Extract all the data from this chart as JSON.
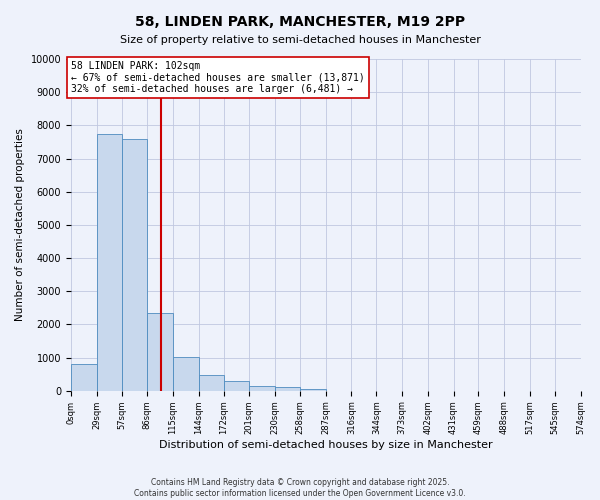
{
  "title": "58, LINDEN PARK, MANCHESTER, M19 2PP",
  "subtitle": "Size of property relative to semi-detached houses in Manchester",
  "xlabel": "Distribution of semi-detached houses by size in Manchester",
  "ylabel": "Number of semi-detached properties",
  "bin_edges": [
    0,
    29,
    57,
    86,
    115,
    144,
    172,
    201,
    230,
    258,
    287,
    316,
    344,
    373,
    402,
    431,
    459,
    488,
    517,
    545,
    574
  ],
  "bin_counts": [
    800,
    7750,
    7600,
    2350,
    1020,
    460,
    290,
    140,
    100,
    50,
    0,
    0,
    0,
    0,
    0,
    0,
    0,
    0,
    0,
    0
  ],
  "bar_facecolor": "#c8d8ed",
  "bar_edgecolor": "#4d8bbf",
  "property_size": 102,
  "vline_color": "#cc0000",
  "annotation_text": "58 LINDEN PARK: 102sqm\n← 67% of semi-detached houses are smaller (13,871)\n32% of semi-detached houses are larger (6,481) →",
  "annotation_box_edgecolor": "#cc0000",
  "annotation_box_facecolor": "white",
  "ylim": [
    0,
    10000
  ],
  "yticks": [
    0,
    1000,
    2000,
    3000,
    4000,
    5000,
    6000,
    7000,
    8000,
    9000,
    10000
  ],
  "tick_labels": [
    "0sqm",
    "29sqm",
    "57sqm",
    "86sqm",
    "115sqm",
    "144sqm",
    "172sqm",
    "201sqm",
    "230sqm",
    "258sqm",
    "287sqm",
    "316sqm",
    "344sqm",
    "373sqm",
    "402sqm",
    "431sqm",
    "459sqm",
    "488sqm",
    "517sqm",
    "545sqm",
    "574sqm"
  ],
  "footer1": "Contains HM Land Registry data © Crown copyright and database right 2025.",
  "footer2": "Contains public sector information licensed under the Open Government Licence v3.0.",
  "background_color": "#eef2fb",
  "grid_color": "#c0c8e0"
}
